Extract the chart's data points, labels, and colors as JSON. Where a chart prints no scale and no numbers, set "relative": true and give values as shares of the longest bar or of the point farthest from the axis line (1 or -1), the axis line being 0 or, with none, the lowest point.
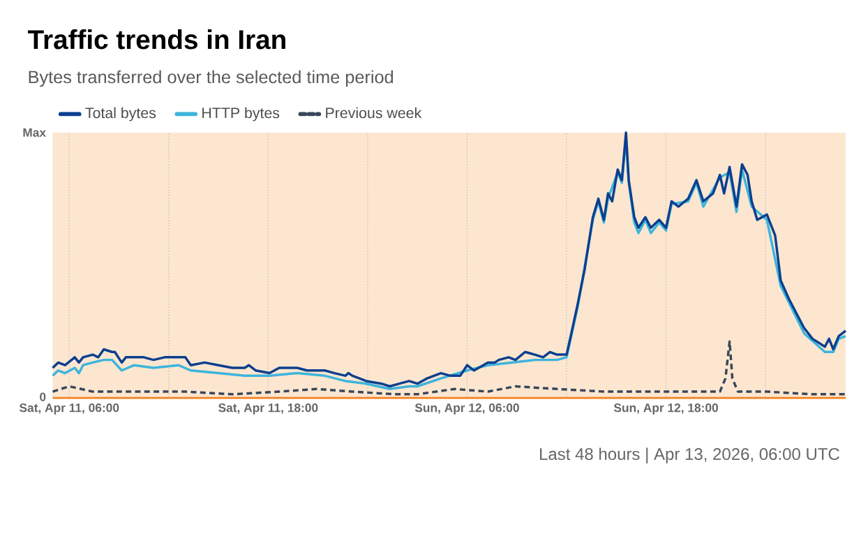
{
  "chart_data": {
    "type": "line",
    "title": "Traffic trends in Iran",
    "subtitle": "Bytes transferred over the selected time period",
    "annotations": [
      "Last 48 hours  |  Apr 13, 2026, 06:00 UTC",
      "Max",
      "0"
    ],
    "relative": true,
    "xlim": [
      "2026-04-11T05:00",
      "2026-04-13T04:50"
    ],
    "xticks": [
      {
        "value": "2026-04-11T06:00",
        "label": "Sat, Apr 11, 06:00"
      },
      {
        "value": "2026-04-11T12:00",
        "label": null
      },
      {
        "value": "2026-04-11T18:00",
        "label": "Sat, Apr 11, 18:00"
      },
      {
        "value": "2026-04-12T00:00",
        "label": null
      },
      {
        "value": "2026-04-12T06:00",
        "label": "Sun, Apr 12, 06:00"
      },
      {
        "value": "2026-04-12T12:00",
        "label": null
      },
      {
        "value": "2026-04-12T18:00",
        "label": "Sun, Apr 12, 18:00"
      },
      {
        "value": "2026-04-13T00:00",
        "label": null
      }
    ],
    "grid": "x",
    "legend": "top left",
    "marker": "none",
    "bands": [
      {
        "axis": "x",
        "from": "2026-04-11T05:00",
        "to": "2026-04-13T04:50",
        "color": "#fde6d0"
      }
    ],
    "series": [
      {
        "name": "Total bytes",
        "color": "#0b3f8f",
        "line_style": "solid",
        "x": [
          "2026-04-11T05:00",
          "2026-04-11T05:20",
          "2026-04-11T05:45",
          "2026-04-11T06:20",
          "2026-04-11T06:35",
          "2026-04-11T06:50",
          "2026-04-11T07:25",
          "2026-04-11T07:45",
          "2026-04-11T08:05",
          "2026-04-11T08:35",
          "2026-04-11T08:45",
          "2026-04-11T09:10",
          "2026-04-11T09:25",
          "2026-04-11T09:55",
          "2026-04-11T10:30",
          "2026-04-11T11:05",
          "2026-04-11T11:45",
          "2026-04-11T12:35",
          "2026-04-11T13:00",
          "2026-04-11T13:20",
          "2026-04-11T14:10",
          "2026-04-11T15:00",
          "2026-04-11T15:50",
          "2026-04-11T16:35",
          "2026-04-11T16:50",
          "2026-04-11T17:15",
          "2026-04-11T18:05",
          "2026-04-11T18:40",
          "2026-04-11T19:45",
          "2026-04-11T20:20",
          "2026-04-11T21:25",
          "2026-04-11T22:00",
          "2026-04-11T22:40",
          "2026-04-11T22:50",
          "2026-04-11T23:05",
          "2026-04-11T23:55",
          "2026-04-12T00:50",
          "2026-04-12T01:20",
          "2026-04-12T01:55",
          "2026-04-12T02:30",
          "2026-04-12T03:00",
          "2026-04-12T03:35",
          "2026-04-12T04:25",
          "2026-04-12T05:00",
          "2026-04-12T05:35",
          "2026-04-12T06:00",
          "2026-04-12T06:25",
          "2026-04-12T07:15",
          "2026-04-12T07:40",
          "2026-04-12T07:55",
          "2026-04-12T08:30",
          "2026-04-12T08:55",
          "2026-04-12T09:30",
          "2026-04-12T10:05",
          "2026-04-12T10:35",
          "2026-04-12T11:00",
          "2026-04-12T11:25",
          "2026-04-12T12:00",
          "2026-04-12T12:15",
          "2026-04-12T12:40",
          "2026-04-12T13:05",
          "2026-04-12T13:35",
          "2026-04-12T13:55",
          "2026-04-12T14:15",
          "2026-04-12T14:30",
          "2026-04-12T14:45",
          "2026-04-12T15:05",
          "2026-04-12T15:20",
          "2026-04-12T15:35",
          "2026-04-12T15:45",
          "2026-04-12T16:05",
          "2026-04-12T16:20",
          "2026-04-12T16:45",
          "2026-04-12T17:05",
          "2026-04-12T17:35",
          "2026-04-12T18:00",
          "2026-04-12T18:20",
          "2026-04-12T18:45",
          "2026-04-12T19:20",
          "2026-04-12T19:50",
          "2026-04-12T20:15",
          "2026-04-12T20:50",
          "2026-04-12T21:15",
          "2026-04-12T21:30",
          "2026-04-12T21:50",
          "2026-04-12T22:15",
          "2026-04-12T22:35",
          "2026-04-12T22:55",
          "2026-04-12T23:10",
          "2026-04-12T23:30",
          "2026-04-13T00:05",
          "2026-04-13T00:35",
          "2026-04-13T00:55",
          "2026-04-13T01:25",
          "2026-04-13T02:20",
          "2026-04-13T02:50",
          "2026-04-13T03:35",
          "2026-04-13T03:50",
          "2026-04-13T04:05",
          "2026-04-13T04:25",
          "2026-04-13T04:50"
        ],
        "values": [
          0.11,
          0.13,
          0.12,
          0.15,
          0.13,
          0.15,
          0.16,
          0.15,
          0.18,
          0.17,
          0.17,
          0.13,
          0.15,
          0.15,
          0.15,
          0.14,
          0.15,
          0.15,
          0.15,
          0.12,
          0.13,
          0.12,
          0.11,
          0.11,
          0.12,
          0.1,
          0.09,
          0.11,
          0.11,
          0.1,
          0.1,
          0.09,
          0.08,
          0.09,
          0.08,
          0.06,
          0.05,
          0.04,
          0.05,
          0.06,
          0.05,
          0.07,
          0.09,
          0.08,
          0.08,
          0.12,
          0.1,
          0.13,
          0.13,
          0.14,
          0.15,
          0.14,
          0.17,
          0.16,
          0.15,
          0.17,
          0.16,
          0.16,
          0.23,
          0.35,
          0.48,
          0.68,
          0.75,
          0.67,
          0.77,
          0.74,
          0.86,
          0.82,
          1.0,
          0.82,
          0.68,
          0.64,
          0.68,
          0.64,
          0.67,
          0.64,
          0.74,
          0.72,
          0.75,
          0.82,
          0.74,
          0.77,
          0.84,
          0.77,
          0.87,
          0.72,
          0.88,
          0.84,
          0.74,
          0.67,
          0.69,
          0.61,
          0.44,
          0.37,
          0.26,
          0.22,
          0.19,
          0.22,
          0.18,
          0.23,
          0.25
        ]
      },
      {
        "name": "HTTP bytes",
        "color": "#3db4dc",
        "line_style": "solid",
        "x": [
          "2026-04-11T05:00",
          "2026-04-11T05:20",
          "2026-04-11T05:45",
          "2026-04-11T06:20",
          "2026-04-11T06:35",
          "2026-04-11T06:50",
          "2026-04-11T07:25",
          "2026-04-11T08:05",
          "2026-04-11T08:35",
          "2026-04-11T09:10",
          "2026-04-11T09:55",
          "2026-04-11T11:05",
          "2026-04-11T12:35",
          "2026-04-11T13:20",
          "2026-04-11T15:00",
          "2026-04-11T16:35",
          "2026-04-11T18:05",
          "2026-04-11T19:45",
          "2026-04-11T21:25",
          "2026-04-11T22:40",
          "2026-04-11T23:55",
          "2026-04-12T01:20",
          "2026-04-12T02:30",
          "2026-04-12T03:00",
          "2026-04-12T04:25",
          "2026-04-12T06:00",
          "2026-04-12T07:15",
          "2026-04-12T08:40",
          "2026-04-12T10:05",
          "2026-04-12T11:25",
          "2026-04-12T12:00",
          "2026-04-12T12:40",
          "2026-04-12T13:35",
          "2026-04-12T13:55",
          "2026-04-12T14:15",
          "2026-04-12T14:30",
          "2026-04-12T15:05",
          "2026-04-12T15:20",
          "2026-04-12T15:35",
          "2026-04-12T15:45",
          "2026-04-12T16:05",
          "2026-04-12T16:20",
          "2026-04-12T16:45",
          "2026-04-12T17:05",
          "2026-04-12T17:35",
          "2026-04-12T18:00",
          "2026-04-12T18:20",
          "2026-04-12T19:20",
          "2026-04-12T19:50",
          "2026-04-12T20:15",
          "2026-04-12T21:15",
          "2026-04-12T21:50",
          "2026-04-12T22:15",
          "2026-04-12T22:35",
          "2026-04-12T23:10",
          "2026-04-13T00:05",
          "2026-04-13T00:55",
          "2026-04-13T02:20",
          "2026-04-13T03:35",
          "2026-04-13T04:05",
          "2026-04-13T04:25",
          "2026-04-13T04:50"
        ],
        "values": [
          0.08,
          0.1,
          0.09,
          0.11,
          0.09,
          0.12,
          0.13,
          0.14,
          0.14,
          0.1,
          0.12,
          0.11,
          0.12,
          0.1,
          0.09,
          0.08,
          0.08,
          0.09,
          0.08,
          0.06,
          0.05,
          0.03,
          0.04,
          0.04,
          0.07,
          0.1,
          0.12,
          0.13,
          0.14,
          0.14,
          0.15,
          0.34,
          0.67,
          0.74,
          0.66,
          0.75,
          0.85,
          0.81,
          0.98,
          0.81,
          0.66,
          0.62,
          0.67,
          0.62,
          0.66,
          0.63,
          0.73,
          0.74,
          0.81,
          0.72,
          0.83,
          0.85,
          0.7,
          0.86,
          0.72,
          0.67,
          0.42,
          0.24,
          0.17,
          0.17,
          0.22,
          0.23
        ]
      },
      {
        "name": "Previous week",
        "color": "#37475a",
        "line_style": "dashed",
        "x": [
          "2026-04-11T05:00",
          "2026-04-11T06:00",
          "2026-04-11T07:25",
          "2026-04-11T10:15",
          "2026-04-11T13:00",
          "2026-04-11T15:50",
          "2026-04-11T18:40",
          "2026-04-11T20:55",
          "2026-04-11T23:05",
          "2026-04-12T01:40",
          "2026-04-12T03:00",
          "2026-04-12T05:15",
          "2026-04-12T07:15",
          "2026-04-12T08:55",
          "2026-04-12T11:25",
          "2026-04-12T14:15",
          "2026-04-12T17:05",
          "2026-04-12T19:50",
          "2026-04-12T21:15",
          "2026-04-12T21:35",
          "2026-04-12T21:50",
          "2026-04-12T22:00",
          "2026-04-12T22:20",
          "2026-04-13T00:05",
          "2026-04-13T02:50",
          "2026-04-13T04:50"
        ],
        "values": [
          0.02,
          0.04,
          0.02,
          0.02,
          0.02,
          0.01,
          0.02,
          0.03,
          0.02,
          0.01,
          0.01,
          0.03,
          0.02,
          0.04,
          0.03,
          0.02,
          0.02,
          0.02,
          0.02,
          0.07,
          0.21,
          0.07,
          0.02,
          0.02,
          0.01,
          0.01
        ]
      }
    ]
  }
}
